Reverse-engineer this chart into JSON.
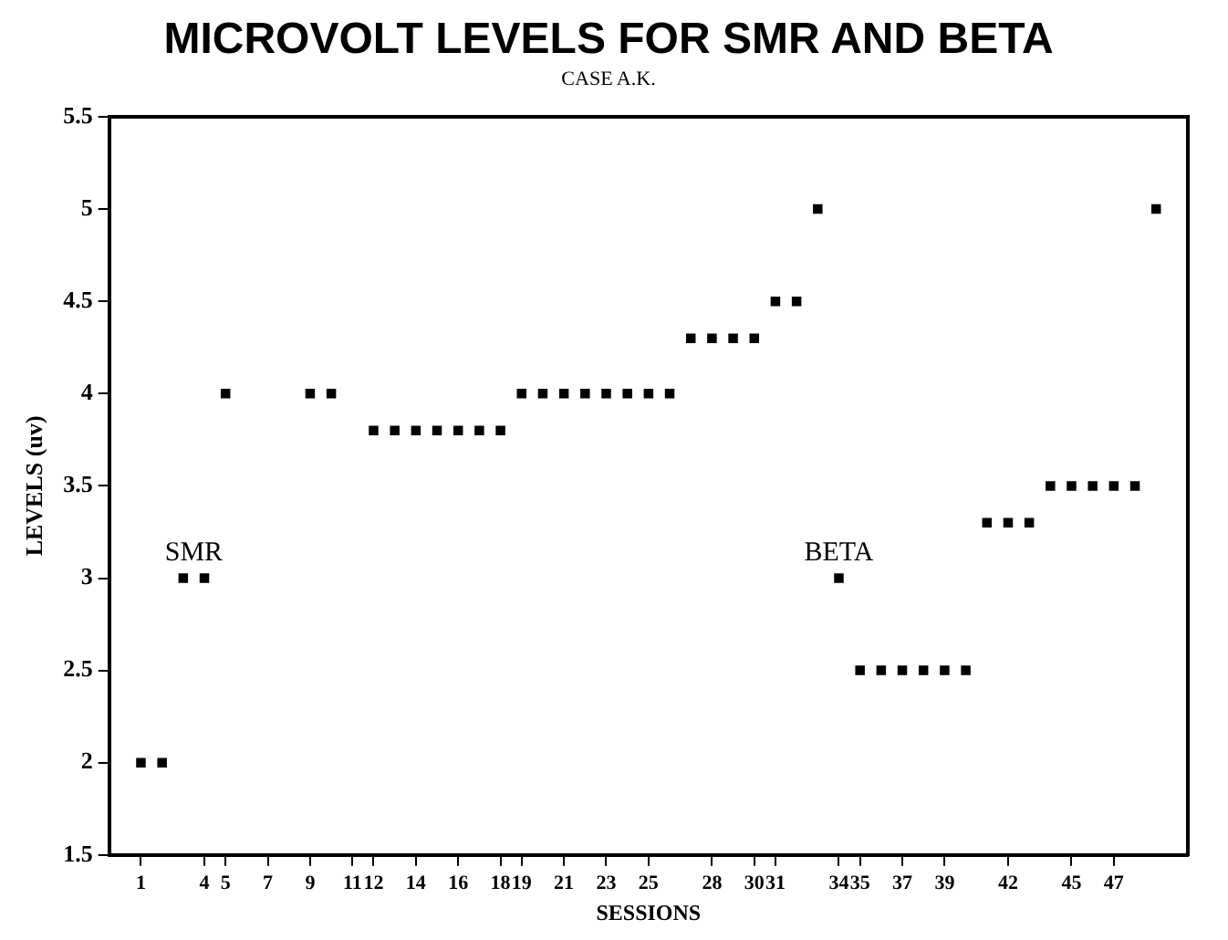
{
  "chart_data": {
    "type": "scatter",
    "title": "MICROVOLT LEVELS FOR SMR AND BETA",
    "subtitle": "CASE A.K.",
    "xlabel": "SESSIONS",
    "ylabel": "LEVELS (uv)",
    "series": [
      {
        "color": "#000000",
        "x": [
          1,
          2,
          3,
          4,
          5,
          9,
          10,
          12,
          13,
          14,
          15,
          16,
          17,
          18,
          19,
          20,
          21,
          22,
          23,
          24,
          25,
          26,
          27,
          28,
          29,
          30,
          31,
          32,
          33
        ],
        "values": [
          2,
          2,
          3,
          3,
          4,
          4,
          4,
          3.8,
          3.8,
          3.8,
          3.8,
          3.8,
          3.8,
          3.8,
          4,
          4,
          4,
          4,
          4,
          4,
          4,
          4,
          4.3,
          4.3,
          4.3,
          4.3,
          4.5,
          4.5,
          5
        ]
      },
      {
        "color": "#000000",
        "x": [
          34,
          35,
          36,
          37,
          38,
          39,
          40,
          41,
          42,
          43,
          44,
          45,
          46,
          47,
          48,
          49
        ],
        "values": [
          3,
          2.5,
          2.5,
          2.5,
          2.5,
          2.5,
          2.5,
          3.3,
          3.3,
          3.3,
          3.5,
          3.5,
          3.5,
          3.5,
          3.5,
          5
        ]
      }
    ],
    "annotations": [
      {
        "text": "SMR",
        "x": 3.5,
        "y": 3
      },
      {
        "text": "BETA",
        "x": 34,
        "y": 3
      }
    ],
    "xlim": [
      -0.5,
      50.5
    ],
    "xticks": [
      1,
      4,
      5,
      7,
      9,
      11,
      12,
      14,
      16,
      18,
      19,
      21,
      23,
      25,
      28,
      30,
      31,
      34,
      35,
      37,
      39,
      42,
      45,
      47
    ],
    "ylim": [
      1.5,
      5.5
    ],
    "yticks": [
      1.5,
      2,
      2.5,
      3,
      3.5,
      4,
      4.5,
      5,
      5.5
    ],
    "marker": "square",
    "grid": false,
    "legend": false
  }
}
